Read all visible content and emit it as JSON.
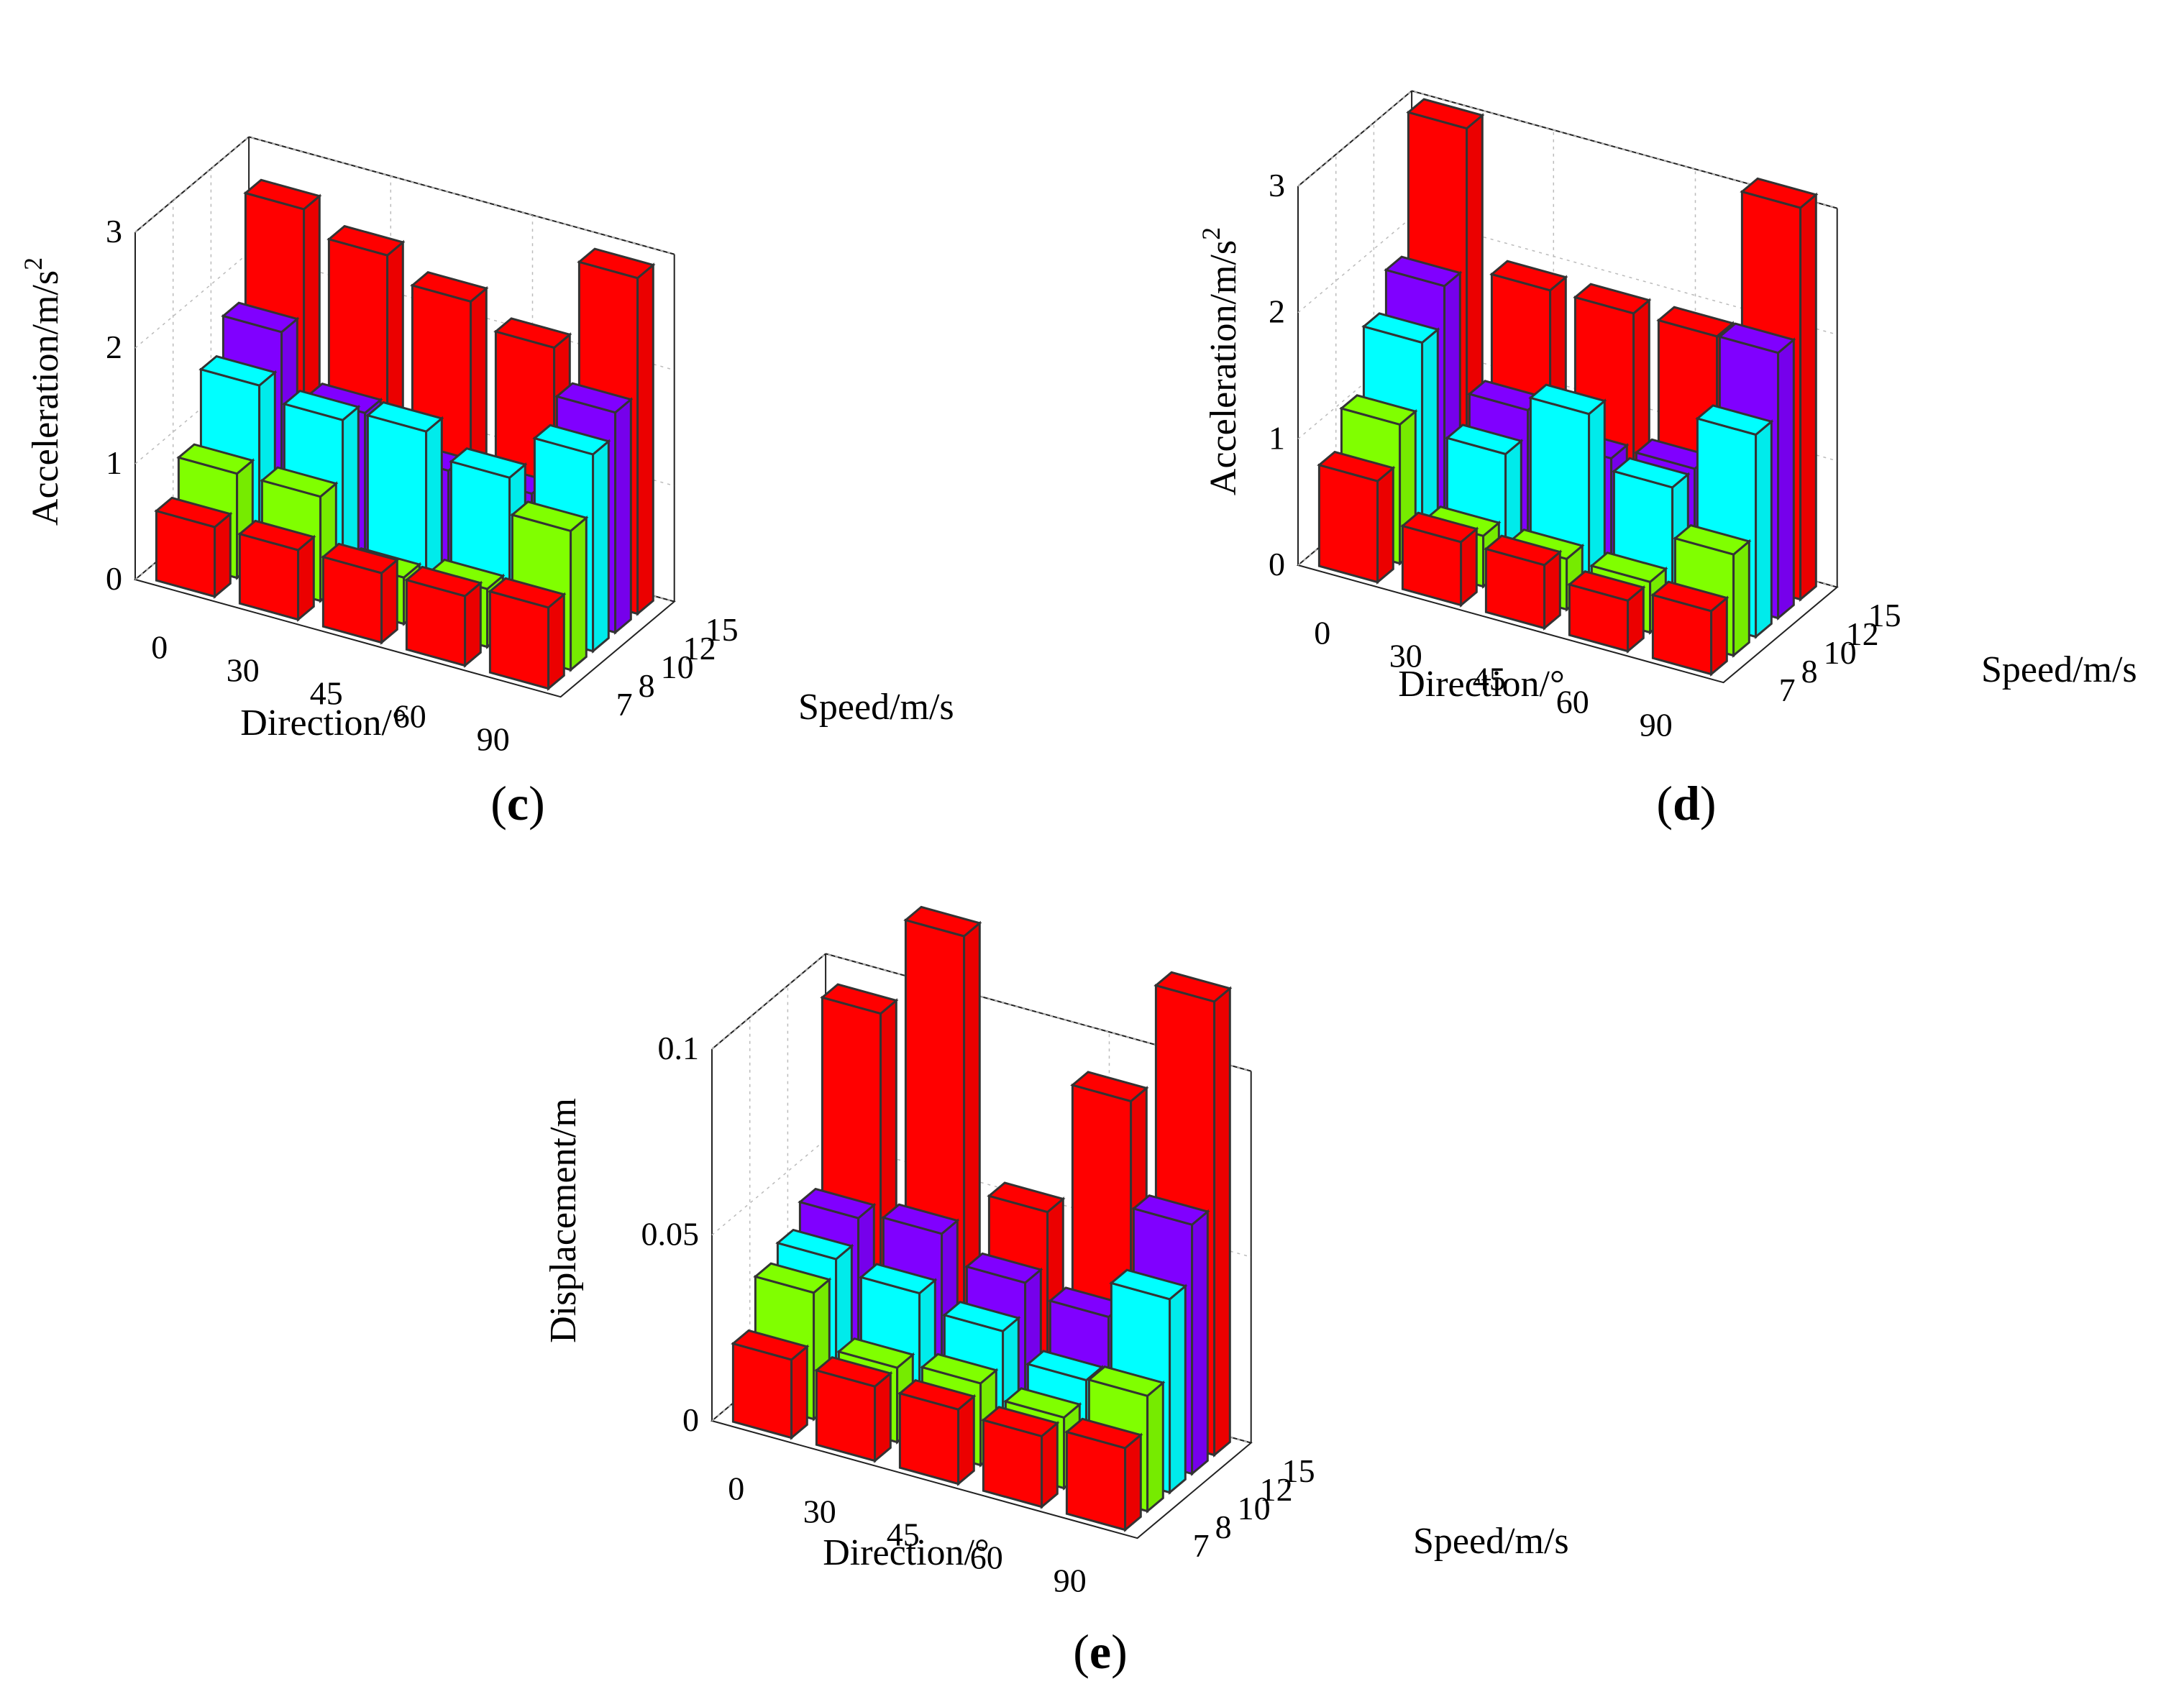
{
  "figure": {
    "background": "#ffffff"
  },
  "colors": {
    "speed_7": "#ff0000",
    "speed_8": "#80ff00",
    "speed_10": "#00ffff",
    "speed_12": "#8000ff",
    "speed_15": "#ff0000",
    "edge": "#333333"
  },
  "chart_data": [
    {
      "id": "c",
      "type": "bar3d",
      "panel_label": "c",
      "title": "",
      "xlabel": "Direction/°",
      "ylabel": "Speed/m/s",
      "zlabel_main": "Acceleration/m/s",
      "zlabel_sup": "2",
      "categories": [
        "0",
        "30",
        "45",
        "60",
        "90"
      ],
      "speeds": [
        "7",
        "8",
        "10",
        "12",
        "15"
      ],
      "zlim": [
        0,
        3
      ],
      "zticks": [
        "0",
        "1",
        "2",
        "3"
      ],
      "grid": true,
      "series": [
        {
          "name": "7",
          "values": [
            0.6,
            0.6,
            0.6,
            0.6,
            0.7
          ]
        },
        {
          "name": "8",
          "values": [
            0.9,
            0.9,
            0.4,
            0.5,
            1.2
          ]
        },
        {
          "name": "10",
          "values": [
            1.5,
            1.4,
            1.5,
            1.3,
            1.7
          ]
        },
        {
          "name": "12",
          "values": [
            1.8,
            1.3,
            1.0,
            1.0,
            1.9
          ]
        },
        {
          "name": "15",
          "values": [
            2.7,
            2.5,
            2.3,
            2.1,
            2.9
          ]
        }
      ]
    },
    {
      "id": "d",
      "type": "bar3d",
      "panel_label": "d",
      "title": "",
      "xlabel": "Direction/°",
      "ylabel": "Speed/m/s",
      "zlabel_main": "Acceleration/m/s",
      "zlabel_sup": "2",
      "categories": [
        "0",
        "30",
        "45",
        "60",
        "90"
      ],
      "speeds": [
        "7",
        "8",
        "10",
        "12",
        "15"
      ],
      "zlim": [
        0,
        3
      ],
      "zticks": [
        "0",
        "1",
        "2",
        "3"
      ],
      "grid": true,
      "series": [
        {
          "name": "7",
          "values": [
            0.8,
            0.5,
            0.5,
            0.4,
            0.5
          ]
        },
        {
          "name": "8",
          "values": [
            1.1,
            0.4,
            0.4,
            0.4,
            0.8
          ]
        },
        {
          "name": "10",
          "values": [
            1.6,
            0.9,
            1.4,
            1.0,
            1.6
          ]
        },
        {
          "name": "12",
          "values": [
            1.9,
            1.1,
            0.9,
            1.0,
            2.1
          ]
        },
        {
          "name": "15",
          "values": [
            3.0,
            1.9,
            1.9,
            1.9,
            3.1
          ]
        }
      ]
    },
    {
      "id": "e",
      "type": "bar3d",
      "panel_label": "e",
      "title": "",
      "xlabel": "Direction/°",
      "ylabel": "Speed/m/s",
      "zlabel_main": "Displacement/m",
      "zlabel_sup": "",
      "categories": [
        "0",
        "30",
        "45",
        "60",
        "90"
      ],
      "speeds": [
        "7",
        "8",
        "10",
        "12",
        "15"
      ],
      "zlim": [
        0,
        0.1
      ],
      "zticks": [
        "0",
        "0.05",
        "0.1"
      ],
      "grid": true,
      "series": [
        {
          "name": "7",
          "values": [
            0.021,
            0.02,
            0.02,
            0.019,
            0.022
          ]
        },
        {
          "name": "8",
          "values": [
            0.034,
            0.02,
            0.022,
            0.019,
            0.031
          ]
        },
        {
          "name": "10",
          "values": [
            0.038,
            0.035,
            0.031,
            0.024,
            0.052
          ]
        },
        {
          "name": "12",
          "values": [
            0.044,
            0.046,
            0.039,
            0.036,
            0.067
          ]
        },
        {
          "name": "15",
          "values": [
            0.094,
            0.121,
            0.053,
            0.089,
            0.122
          ]
        }
      ]
    }
  ]
}
